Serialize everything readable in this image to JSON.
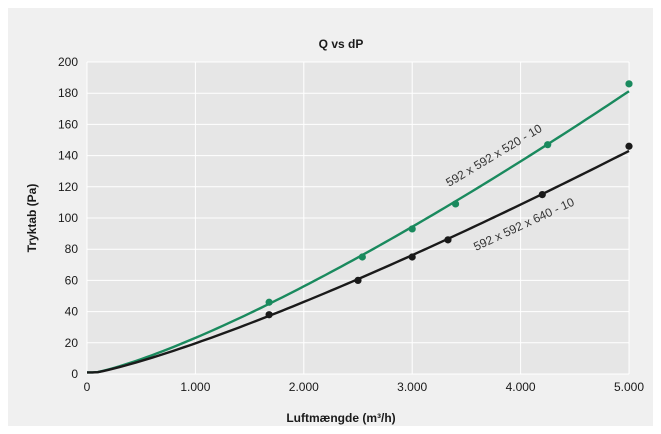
{
  "chart_data": {
    "type": "line",
    "title": "Q vs dP",
    "xlabel": "Luftmængde (m³/h)",
    "ylabel": "Tryktab (Pa)",
    "xlim": [
      0,
      5000
    ],
    "ylim": [
      0,
      200
    ],
    "x_ticks": [
      0,
      1000,
      2000,
      3000,
      4000,
      5000
    ],
    "x_tick_labels": [
      "0",
      "1.000",
      "2.000",
      "3.000",
      "4.000",
      "5.000"
    ],
    "y_ticks": [
      0,
      20,
      40,
      60,
      80,
      100,
      120,
      140,
      160,
      180,
      200
    ],
    "y_tick_labels": [
      "0",
      "20",
      "40",
      "60",
      "80",
      "100",
      "120",
      "140",
      "160",
      "180",
      "200"
    ],
    "grid": true,
    "series": [
      {
        "name": "592 x 592 x 520 - 10",
        "color": "#1a8a5e",
        "points": [
          {
            "x": 1680,
            "y": 46
          },
          {
            "x": 2540,
            "y": 75
          },
          {
            "x": 3000,
            "y": 93
          },
          {
            "x": 3400,
            "y": 109
          },
          {
            "x": 4250,
            "y": 147
          },
          {
            "x": 5000,
            "y": 186
          }
        ]
      },
      {
        "name": "592 x 592 x 640 - 10",
        "color": "#1a1a1a",
        "points": [
          {
            "x": 1680,
            "y": 38
          },
          {
            "x": 2500,
            "y": 60
          },
          {
            "x": 3000,
            "y": 75
          },
          {
            "x": 3330,
            "y": 86
          },
          {
            "x": 4200,
            "y": 115
          },
          {
            "x": 5000,
            "y": 146
          }
        ]
      }
    ]
  }
}
